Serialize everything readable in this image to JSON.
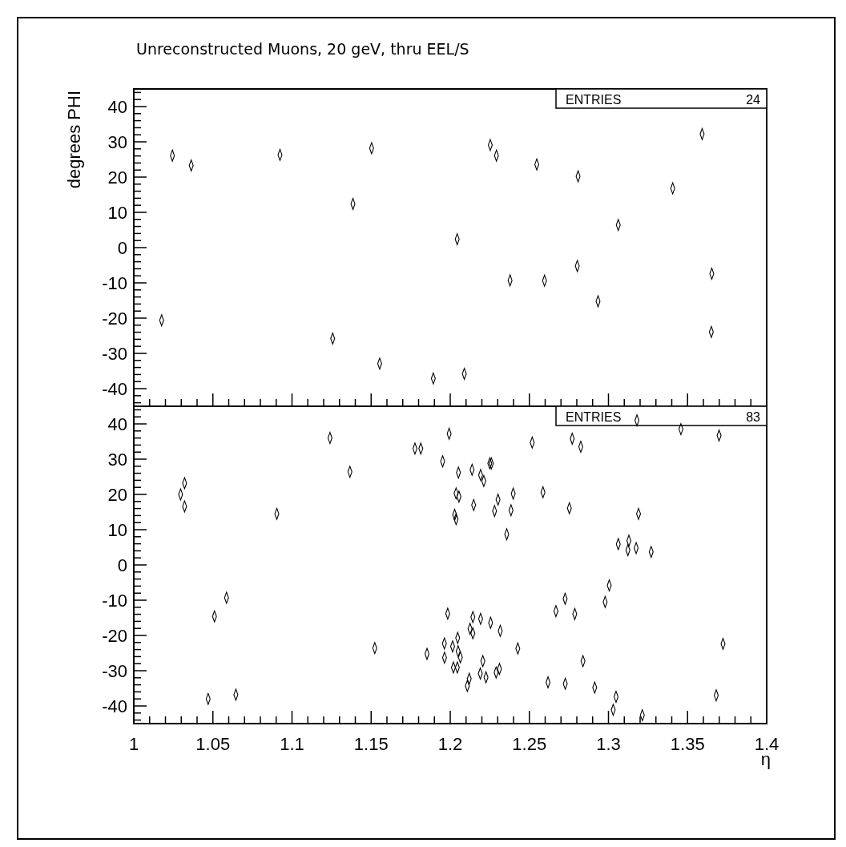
{
  "chart_data": [
    {
      "type": "scatter",
      "title": "Unreconstructed Muons, 20 geV, thru EEL/S",
      "ylabel": "degrees PHI",
      "annotations": [
        "ENTRIES",
        "24"
      ],
      "marker": "diamond",
      "color": "#000000",
      "tick_labels": "y",
      "x": [
        1.0176,
        1.0244,
        1.0363,
        1.0924,
        1.1385,
        1.1503,
        1.1257,
        1.1554,
        1.1893,
        1.2044,
        1.2089,
        1.2253,
        1.2292,
        1.2378,
        1.2547,
        1.2596,
        1.2803,
        1.2808,
        1.2934,
        1.3062,
        1.3406,
        1.3592,
        1.3653,
        1.365
      ],
      "values": [
        -20.6,
        26.1,
        23.3,
        26.3,
        12.4,
        28.2,
        -25.8,
        -32.9,
        -37.1,
        2.4,
        -35.8,
        29.1,
        26.1,
        -9.3,
        23.6,
        -9.4,
        -5.2,
        20.2,
        -15.2,
        6.4,
        16.8,
        32.2,
        -7.4,
        -23.9
      ],
      "xlim": [
        1,
        1.4
      ],
      "ylim": [
        -45,
        45
      ],
      "xticks": [
        1,
        {
          "value": 1.01,
          "label": null
        },
        {
          "value": 1.02,
          "label": null
        },
        {
          "value": 1.03,
          "label": null
        },
        {
          "value": 1.04,
          "label": null
        },
        1.05,
        {
          "value": 1.06,
          "label": null
        },
        {
          "value": 1.07,
          "label": null
        },
        {
          "value": 1.08,
          "label": null
        },
        {
          "value": 1.09,
          "label": null
        },
        1.1,
        {
          "value": 1.11,
          "label": null
        },
        {
          "value": 1.12,
          "label": null
        },
        {
          "value": 1.13,
          "label": null
        },
        {
          "value": 1.14,
          "label": null
        },
        1.15,
        {
          "value": 1.16,
          "label": null
        },
        {
          "value": 1.17,
          "label": null
        },
        {
          "value": 1.18,
          "label": null
        },
        {
          "value": 1.19,
          "label": null
        },
        1.2,
        {
          "value": 1.21,
          "label": null
        },
        {
          "value": 1.22,
          "label": null
        },
        {
          "value": 1.23,
          "label": null
        },
        {
          "value": 1.24,
          "label": null
        },
        1.25,
        {
          "value": 1.26,
          "label": null
        },
        {
          "value": 1.27,
          "label": null
        },
        {
          "value": 1.28,
          "label": null
        },
        {
          "value": 1.29,
          "label": null
        },
        1.3,
        {
          "value": 1.31,
          "label": null
        },
        {
          "value": 1.32,
          "label": null
        },
        {
          "value": 1.33,
          "label": null
        },
        {
          "value": 1.34,
          "label": null
        },
        1.35,
        {
          "value": 1.36,
          "label": null
        },
        {
          "value": 1.37,
          "label": null
        },
        {
          "value": 1.38,
          "label": null
        },
        {
          "value": 1.39,
          "label": null
        },
        1.4
      ],
      "yticks": [
        {
          "value": -44,
          "label": null
        },
        {
          "value": -42,
          "label": null
        },
        -40,
        {
          "value": -38,
          "label": null
        },
        {
          "value": -36,
          "label": null
        },
        {
          "value": -34,
          "label": null
        },
        {
          "value": -32,
          "label": null
        },
        -30,
        {
          "value": -28,
          "label": null
        },
        {
          "value": -26,
          "label": null
        },
        {
          "value": -24,
          "label": null
        },
        {
          "value": -22,
          "label": null
        },
        -20,
        {
          "value": -18,
          "label": null
        },
        {
          "value": -16,
          "label": null
        },
        {
          "value": -14,
          "label": null
        },
        {
          "value": -12,
          "label": null
        },
        -10,
        {
          "value": -8,
          "label": null
        },
        {
          "value": -6,
          "label": null
        },
        {
          "value": -4,
          "label": null
        },
        {
          "value": -2,
          "label": null
        },
        0,
        {
          "value": 2,
          "label": null
        },
        {
          "value": 4,
          "label": null
        },
        {
          "value": 6,
          "label": null
        },
        {
          "value": 8,
          "label": null
        },
        10,
        {
          "value": 12,
          "label": null
        },
        {
          "value": 14,
          "label": null
        },
        {
          "value": 16,
          "label": null
        },
        {
          "value": 18,
          "label": null
        },
        20,
        {
          "value": 22,
          "label": null
        },
        {
          "value": 24,
          "label": null
        },
        {
          "value": 26,
          "label": null
        },
        {
          "value": 28,
          "label": null
        },
        30,
        {
          "value": 32,
          "label": null
        },
        {
          "value": 34,
          "label": null
        },
        {
          "value": 36,
          "label": null
        },
        {
          "value": 38,
          "label": null
        },
        40,
        {
          "value": 42,
          "label": null
        },
        {
          "value": 44,
          "label": null
        }
      ]
    },
    {
      "type": "scatter",
      "xlabel": "η",
      "annotations": [
        "ENTRIES",
        "83"
      ],
      "marker": "diamond",
      "color": "#000000",
      "x": [
        1.124,
        1.1777,
        1.1366,
        1.0321,
        1.0296,
        1.0321,
        1.0904,
        1.0586,
        1.051,
        1.1523,
        1.047,
        1.0645,
        1.1993,
        1.1814,
        1.2518,
        1.1952,
        1.225,
        1.226,
        1.2052,
        1.2138,
        1.2192,
        1.2212,
        1.2037,
        1.2055,
        1.2302,
        1.2398,
        1.2586,
        1.2148,
        1.228,
        1.2384,
        1.2028,
        1.2037,
        1.2357,
        1.1984,
        1.2143,
        1.2192,
        1.2255,
        1.2125,
        1.2143,
        1.2316,
        1.2047,
        1.1963,
        1.2015,
        1.2427,
        1.1853,
        1.205,
        1.1964,
        1.2064,
        1.2206,
        1.202,
        1.2045,
        1.2311,
        1.229,
        1.219,
        1.2226,
        1.212,
        1.2108,
        1.2618,
        1.318,
        1.3458,
        1.3699,
        1.2771,
        1.2825,
        1.2753,
        1.319,
        1.3129,
        1.3062,
        1.3123,
        1.3175,
        1.327,
        1.3005,
        1.2979,
        1.2726,
        1.2668,
        1.2787,
        1.3724,
        1.2839,
        1.2727,
        1.2913,
        1.3048,
        1.303,
        1.3214,
        1.3681
      ],
      "values": [
        36.0,
        33.0,
        26.4,
        23.2,
        20.0,
        16.6,
        14.5,
        -9.3,
        -14.6,
        -23.6,
        -38.0,
        -36.8,
        37.2,
        33.0,
        34.7,
        29.4,
        28.8,
        28.8,
        26.2,
        27.0,
        25.5,
        23.8,
        20.3,
        19.4,
        18.5,
        20.2,
        20.6,
        17.0,
        15.3,
        15.5,
        14.2,
        13.0,
        8.7,
        -13.8,
        -14.8,
        -15.3,
        -16.4,
        -18.1,
        -19.4,
        -18.7,
        -20.7,
        -22.3,
        -23.1,
        -23.7,
        -25.2,
        -24.5,
        -26.3,
        -26.2,
        -27.3,
        -29.1,
        -29.1,
        -29.5,
        -30.5,
        -30.8,
        -31.9,
        -32.3,
        -34.3,
        -33.3,
        41.0,
        38.5,
        36.7,
        35.8,
        33.5,
        16.1,
        14.5,
        6.9,
        5.9,
        4.2,
        4.8,
        3.7,
        -5.8,
        -10.5,
        -9.6,
        -13.1,
        -13.9,
        -22.4,
        -27.3,
        -33.7,
        -34.8,
        -37.4,
        -41.1,
        -42.6,
        -37.0
      ],
      "xlim": [
        1,
        1.4
      ],
      "ylim": [
        -45,
        45
      ],
      "xticks": [
        1,
        {
          "value": 1.01,
          "label": null
        },
        {
          "value": 1.02,
          "label": null
        },
        {
          "value": 1.03,
          "label": null
        },
        {
          "value": 1.04,
          "label": null
        },
        1.05,
        {
          "value": 1.06,
          "label": null
        },
        {
          "value": 1.07,
          "label": null
        },
        {
          "value": 1.08,
          "label": null
        },
        {
          "value": 1.09,
          "label": null
        },
        1.1,
        {
          "value": 1.11,
          "label": null
        },
        {
          "value": 1.12,
          "label": null
        },
        {
          "value": 1.13,
          "label": null
        },
        {
          "value": 1.14,
          "label": null
        },
        1.15,
        {
          "value": 1.16,
          "label": null
        },
        {
          "value": 1.17,
          "label": null
        },
        {
          "value": 1.18,
          "label": null
        },
        {
          "value": 1.19,
          "label": null
        },
        1.2,
        {
          "value": 1.21,
          "label": null
        },
        {
          "value": 1.22,
          "label": null
        },
        {
          "value": 1.23,
          "label": null
        },
        {
          "value": 1.24,
          "label": null
        },
        1.25,
        {
          "value": 1.26,
          "label": null
        },
        {
          "value": 1.27,
          "label": null
        },
        {
          "value": 1.28,
          "label": null
        },
        {
          "value": 1.29,
          "label": null
        },
        1.3,
        {
          "value": 1.31,
          "label": null
        },
        {
          "value": 1.32,
          "label": null
        },
        {
          "value": 1.33,
          "label": null
        },
        {
          "value": 1.34,
          "label": null
        },
        1.35,
        {
          "value": 1.36,
          "label": null
        },
        {
          "value": 1.37,
          "label": null
        },
        {
          "value": 1.38,
          "label": null
        },
        {
          "value": 1.39,
          "label": null
        },
        1.4
      ],
      "yticks": [
        {
          "value": -44,
          "label": null
        },
        {
          "value": -42,
          "label": null
        },
        -40,
        {
          "value": -38,
          "label": null
        },
        {
          "value": -36,
          "label": null
        },
        {
          "value": -34,
          "label": null
        },
        {
          "value": -32,
          "label": null
        },
        -30,
        {
          "value": -28,
          "label": null
        },
        {
          "value": -26,
          "label": null
        },
        {
          "value": -24,
          "label": null
        },
        {
          "value": -22,
          "label": null
        },
        -20,
        {
          "value": -18,
          "label": null
        },
        {
          "value": -16,
          "label": null
        },
        {
          "value": -14,
          "label": null
        },
        {
          "value": -12,
          "label": null
        },
        -10,
        {
          "value": -8,
          "label": null
        },
        {
          "value": -6,
          "label": null
        },
        {
          "value": -4,
          "label": null
        },
        {
          "value": -2,
          "label": null
        },
        0,
        {
          "value": 2,
          "label": null
        },
        {
          "value": 4,
          "label": null
        },
        {
          "value": 6,
          "label": null
        },
        {
          "value": 8,
          "label": null
        },
        10,
        {
          "value": 12,
          "label": null
        },
        {
          "value": 14,
          "label": null
        },
        {
          "value": 16,
          "label": null
        },
        {
          "value": 18,
          "label": null
        },
        20,
        {
          "value": 22,
          "label": null
        },
        {
          "value": 24,
          "label": null
        },
        {
          "value": 26,
          "label": null
        },
        {
          "value": 28,
          "label": null
        },
        30,
        {
          "value": 32,
          "label": null
        },
        {
          "value": 34,
          "label": null
        },
        {
          "value": 36,
          "label": null
        },
        {
          "value": 38,
          "label": null
        },
        40,
        {
          "value": 42,
          "label": null
        },
        {
          "value": 44,
          "label": null
        }
      ]
    }
  ]
}
